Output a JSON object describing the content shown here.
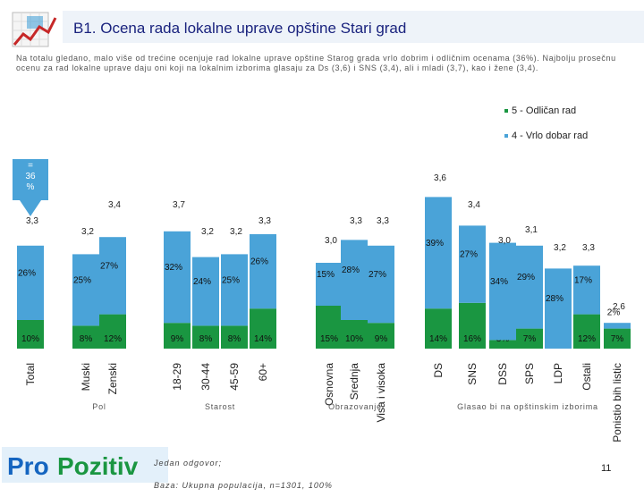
{
  "title": "B1. Ocena rada lokalne uprave opštine Stari grad",
  "description": "Na totalu gledano, malo više od trećine ocenjuje rad lokalne uprave opštine Starog grada vrlo dobrim i odličnim ocenama (36%). Najbolju prosečnu ocenu za rad lokalne uprave daju oni koji na lokalnim izborima glasaju za Ds (3,6) i SNS (3,4), ali i mladi (3,7), kao i žene (3,4).",
  "callout": {
    "line1": "=",
    "line2": "36",
    "line3": "%"
  },
  "footer": {
    "answer_note": "Jedan odgovor;",
    "base_note": "Baza: Ukupna populacija, n=1301, 100%",
    "page_number": "11",
    "logo_pro": "Pro",
    "logo_pozitiv": "Pozitiv"
  },
  "colors": {
    "excellent": "#1a9641",
    "very_good": "#4aa3d8",
    "header": "#eef3f9",
    "title": "#1a237e"
  },
  "chart_data": {
    "type": "bar",
    "subtype": "stacked",
    "title": "B1. Ocena rada lokalne uprave opštine Stari grad",
    "categories": [
      "Total",
      "Muski",
      "Zenski",
      "18-29",
      "30-44",
      "45-59",
      "60+",
      "Osnovna",
      "Srednja",
      "Visa i visoka",
      "DS",
      "SNS",
      "DSS",
      "SPS",
      "LDP",
      "Ostali",
      "Ponistio bih listic"
    ],
    "series": [
      {
        "name": "5 - Odličan rad",
        "values": [
          10,
          8,
          12,
          9,
          8,
          8,
          14,
          15,
          10,
          9,
          14,
          16,
          3,
          7,
          null,
          12,
          7
        ],
        "labels": [
          "10%",
          "8%",
          "12%",
          "9%",
          "8%",
          "8%",
          "14%",
          "15%",
          "10%",
          "9%",
          "14%",
          "16%",
          "3%",
          "7%",
          "",
          "12%",
          "7%"
        ]
      },
      {
        "name": "4 - Vrlo dobar rad",
        "values": [
          26,
          25,
          27,
          32,
          24,
          25,
          26,
          15,
          28,
          27,
          39,
          27,
          34,
          29,
          28,
          17,
          2
        ],
        "labels": [
          "26%",
          "25%",
          "27%",
          "32%",
          "24%",
          "25%",
          "26%",
          "15%",
          "28%",
          "27%",
          "39%",
          "27%",
          "34%",
          "29%",
          "28%",
          "17%",
          "2%"
        ]
      }
    ],
    "averages": [
      "3,3",
      "3,2",
      "3,4",
      "3,7",
      "3,2",
      "3,2",
      "3,3",
      "3,0",
      "3,3",
      "3,3",
      "3,6",
      "3,4",
      "3,0",
      "3,1",
      "3,2",
      "3,3",
      "2,6"
    ],
    "groups": [
      {
        "label": "Pol",
        "from": 1,
        "to": 2
      },
      {
        "label": "Starost",
        "from": 3,
        "to": 6
      },
      {
        "label": "Obrazovanje",
        "from": 7,
        "to": 9
      },
      {
        "label": "Glasao bi na opštinskim izborima",
        "from": 10,
        "to": 16
      }
    ],
    "avg_level": [
      70,
      82,
      52,
      52,
      82,
      82,
      70,
      92,
      70,
      70,
      22,
      52,
      92,
      80,
      100,
      100,
      166
    ]
  }
}
